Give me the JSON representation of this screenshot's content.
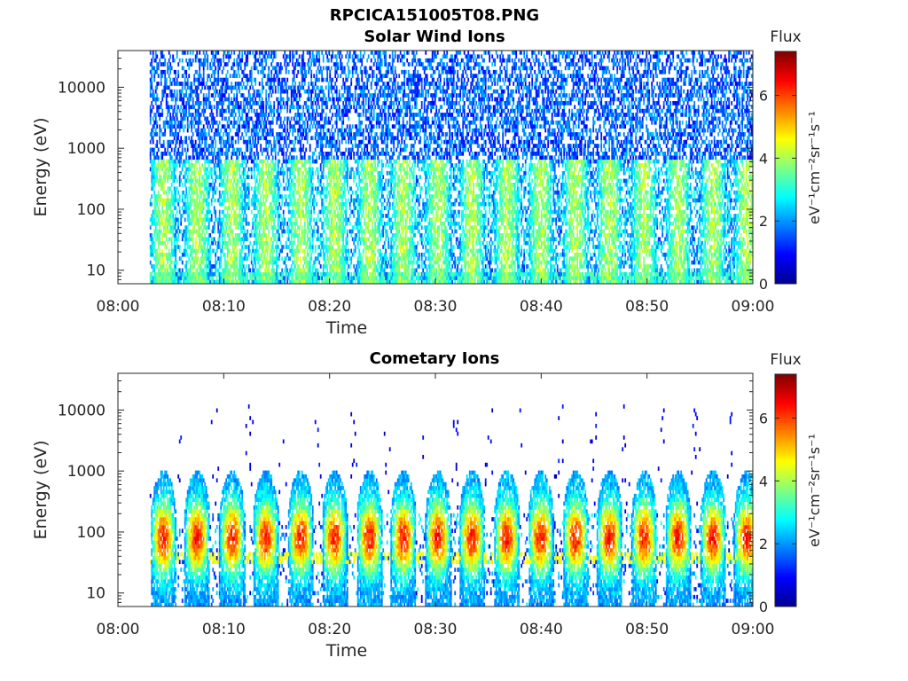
{
  "figure": {
    "title": "RPCICA151005T08.PNG"
  },
  "colors": {
    "colormap": [
      "#00008f",
      "#0000ff",
      "#0080ff",
      "#00ffff",
      "#80ff80",
      "#ffff00",
      "#ff8000",
      "#ff0000",
      "#800000"
    ],
    "axis": "#262626",
    "background": "#ffffff"
  },
  "chart_data": [
    {
      "type": "heatmap",
      "title": "Solar Wind Ions",
      "xlabel": "Time",
      "ylabel": "Energy (eV)",
      "x_ticks": [
        "08:00",
        "08:10",
        "08:20",
        "08:30",
        "08:40",
        "08:50",
        "09:00"
      ],
      "xlim": [
        "08:00",
        "09:00"
      ],
      "y_scale": "log",
      "y_ticks": [
        "10",
        "100",
        "1000",
        "10000"
      ],
      "ylim": [
        6,
        40000
      ],
      "colorbar": {
        "title": "Flux",
        "label": "eV⁻¹cm⁻²sr⁻¹s⁻¹",
        "ticks": [
          "0",
          "2",
          "4",
          "6"
        ],
        "range": [
          0,
          7.4
        ]
      },
      "data_start": "08:03",
      "data_end": "09:00",
      "pulse_period_min": 3.25,
      "pulse_centers_min": [
        4.3,
        7.5,
        10.8,
        14.0,
        17.3,
        20.5,
        23.8,
        27.0,
        30.3,
        33.5,
        36.8,
        40.0,
        43.3,
        46.5,
        49.8,
        53.0,
        56.3,
        59.5
      ],
      "features": "dense low-level flux (1-3) up to ~40000 eV; pulses of 3-4 below ~600 eV"
    },
    {
      "type": "heatmap",
      "title": "Cometary Ions",
      "xlabel": "Time",
      "ylabel": "Energy (eV)",
      "x_ticks": [
        "08:00",
        "08:10",
        "08:20",
        "08:30",
        "08:40",
        "08:50",
        "09:00"
      ],
      "xlim": [
        "08:00",
        "09:00"
      ],
      "y_scale": "log",
      "y_ticks": [
        "10",
        "100",
        "1000",
        "10000"
      ],
      "ylim": [
        6,
        40000
      ],
      "colorbar": {
        "title": "Flux",
        "label": "eV⁻¹cm⁻²sr⁻¹s⁻¹",
        "ticks": [
          "0",
          "2",
          "4",
          "6"
        ],
        "range": [
          0,
          7.4
        ]
      },
      "data_start": "08:03",
      "data_end": "09:00",
      "pulse_period_min": 3.25,
      "pulse_centers_min": [
        4.3,
        7.5,
        10.8,
        14.0,
        17.3,
        20.5,
        23.8,
        27.0,
        30.3,
        33.5,
        36.8,
        40.0,
        43.3,
        46.5,
        49.8,
        53.0,
        56.3,
        59.5
      ],
      "features": "periodic pulses peaking ~5-6.5 at 30-200 eV, extending up to ~1000 eV; sparse low flux above 1000 eV"
    }
  ]
}
